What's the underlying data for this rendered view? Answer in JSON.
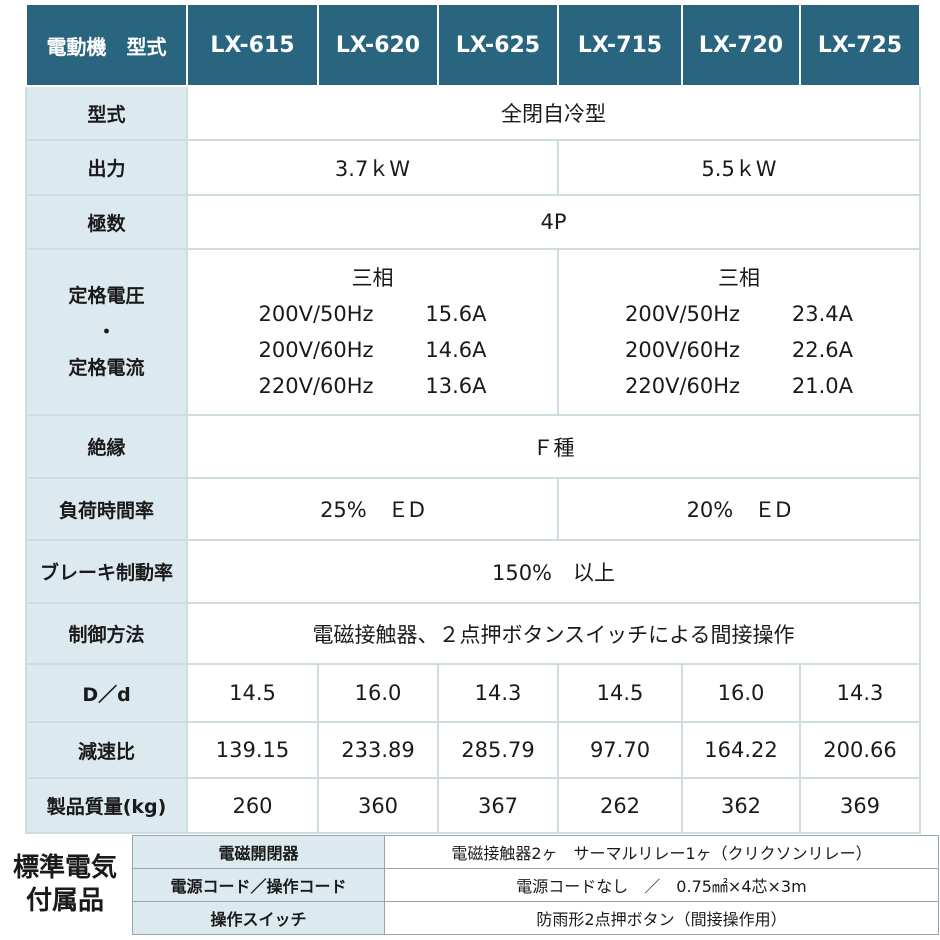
{
  "header": {
    "corner": "電動機　型式",
    "models": [
      "LX-615",
      "LX-620",
      "LX-625",
      "LX-715",
      "LX-720",
      "LX-725"
    ]
  },
  "rows": {
    "type": {
      "label": "型式",
      "value": "全閉自冷型"
    },
    "output": {
      "label": "出力",
      "left": "3.7ｋW",
      "right": "5.5ｋW"
    },
    "poles": {
      "label": "極数",
      "value": "4P"
    },
    "rated": {
      "label_top": "定格電圧",
      "label_mid": "・",
      "label_bottom": "定格電流",
      "left": {
        "phase": "三相",
        "lines": [
          {
            "v": "200V/50Hz",
            "a": "15.6A"
          },
          {
            "v": "200V/60Hz",
            "a": "14.6A"
          },
          {
            "v": "220V/60Hz",
            "a": "13.6A"
          }
        ]
      },
      "right": {
        "phase": "三相",
        "lines": [
          {
            "v": "200V/50Hz",
            "a": "23.4A"
          },
          {
            "v": "200V/60Hz",
            "a": "22.6A"
          },
          {
            "v": "220V/60Hz",
            "a": "21.0A"
          }
        ]
      }
    },
    "insulation": {
      "label": "絶縁",
      "value": "Ｆ種"
    },
    "duty": {
      "label": "負荷時間率",
      "left": "25%　ＥD",
      "right": "20%　ＥD"
    },
    "brake": {
      "label": "ブレーキ制動率",
      "value": "150%　以上"
    },
    "control": {
      "label": "制御方法",
      "value": "電磁接触器、２点押ボタンスイッチによる間接操作"
    },
    "dd": {
      "label": "D／d",
      "values": [
        "14.5",
        "16.0",
        "14.3",
        "14.5",
        "16.0",
        "14.3"
      ]
    },
    "ratio": {
      "label": "減速比",
      "values": [
        "139.15",
        "233.89",
        "285.79",
        "97.70",
        "164.22",
        "200.66"
      ]
    },
    "mass": {
      "label": "製品質量(kg)",
      "values": [
        "260",
        "360",
        "367",
        "262",
        "362",
        "369"
      ]
    }
  },
  "accessories": {
    "title_line1": "標準電気",
    "title_line2": "付属品",
    "items": [
      {
        "label": "電磁開閉器",
        "value": "電磁接触器2ヶ　サーマルリレー1ヶ（クリクソンリレー）"
      },
      {
        "label": "電源コード／操作コード",
        "value": "電源コードなし　／　0.75㎟×4芯×3m"
      },
      {
        "label": "操作スイッチ",
        "value": "防雨形2点押ボタン（間接操作用）"
      }
    ]
  },
  "colors": {
    "header_bg": "#2a6580",
    "label_bg": "#dce9ee",
    "border": "#cfdde2"
  }
}
